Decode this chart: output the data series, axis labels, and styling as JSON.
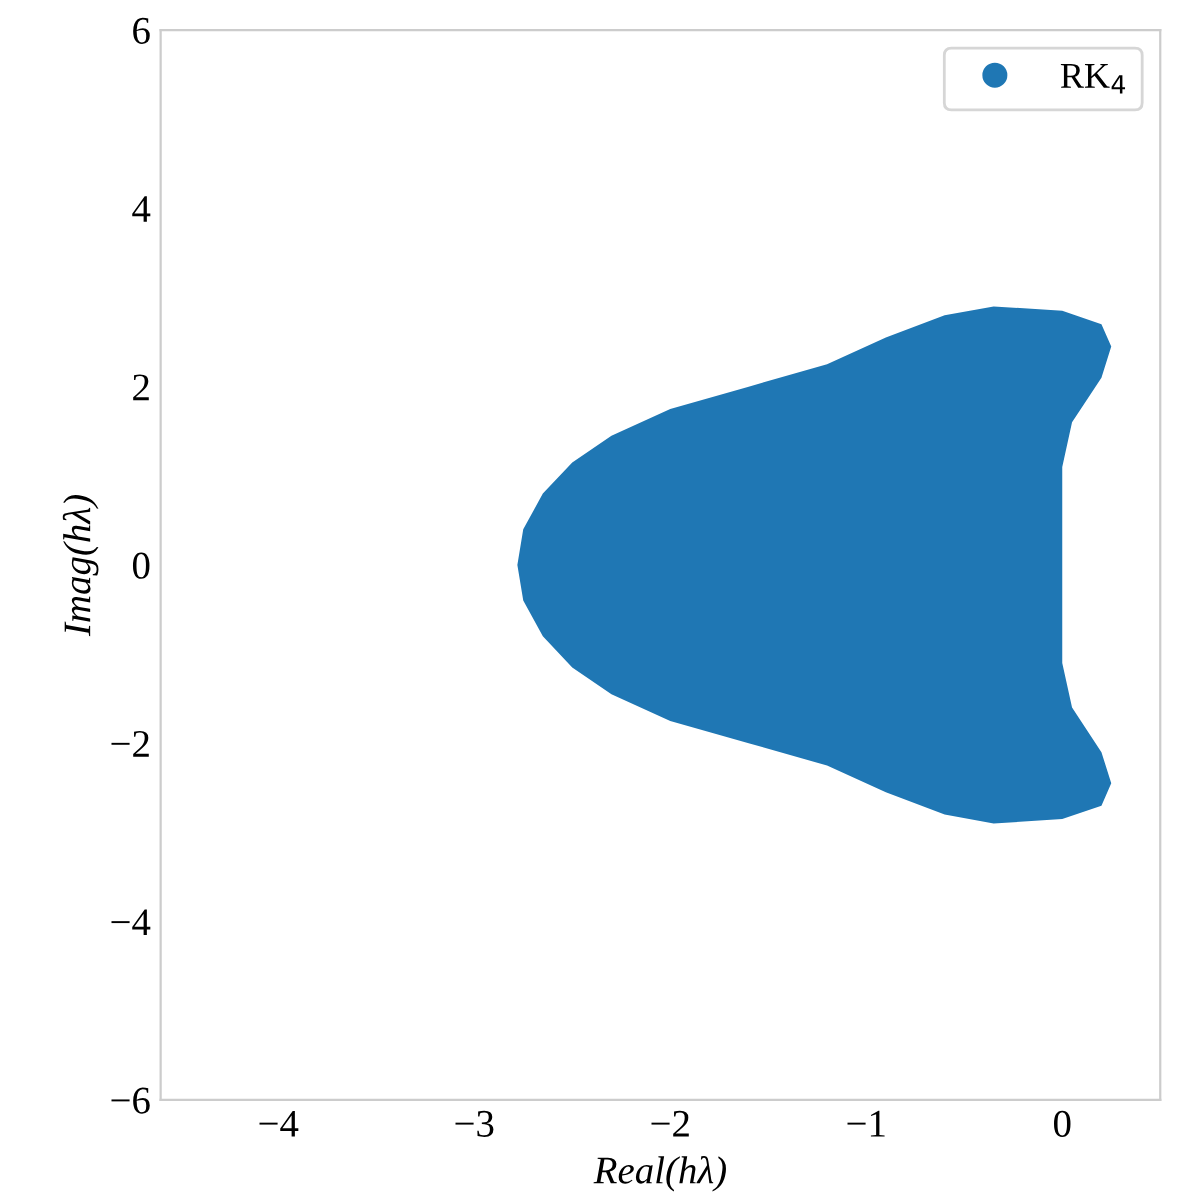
{
  "chart_data": {
    "type": "area",
    "xlabel": "Real(hλ)",
    "ylabel": "Imag(hλ)",
    "xlim": [
      -4.6,
      0.5
    ],
    "xticks": [
      -4,
      -3,
      -2,
      -1,
      0
    ],
    "ylim": [
      -6,
      6
    ],
    "yticks": [
      -6,
      -4,
      -2,
      0,
      2,
      4,
      6
    ],
    "legend": "top right",
    "grid": false,
    "series": [
      {
        "name": "RK$_{4}$",
        "color": "#1f77b4",
        "x": [
          -2.78,
          -2.75,
          -2.65,
          -2.5,
          -2.3,
          -2.0,
          -1.6,
          -1.2,
          -0.9,
          -0.6,
          -0.35,
          0.0,
          0.2,
          0.25,
          0.2,
          0.05,
          0.0,
          0.0,
          0.0,
          0.0,
          0.05,
          0.2,
          0.25,
          0.2,
          0.0,
          -0.35,
          -0.6,
          -0.9,
          -1.2,
          -1.6,
          -2.0,
          -2.3,
          -2.5,
          -2.65,
          -2.75
        ],
        "values": [
          0.0,
          0.4,
          0.8,
          1.15,
          1.45,
          1.75,
          2.0,
          2.25,
          2.55,
          2.8,
          2.9,
          2.85,
          2.7,
          2.45,
          2.1,
          1.6,
          1.1,
          0.5,
          -0.5,
          -1.1,
          -1.6,
          -2.1,
          -2.45,
          -2.7,
          -2.85,
          -2.9,
          -2.8,
          -2.55,
          -2.25,
          -2.0,
          -1.75,
          -1.45,
          -1.15,
          -0.8,
          -0.4
        ]
      }
    ]
  }
}
